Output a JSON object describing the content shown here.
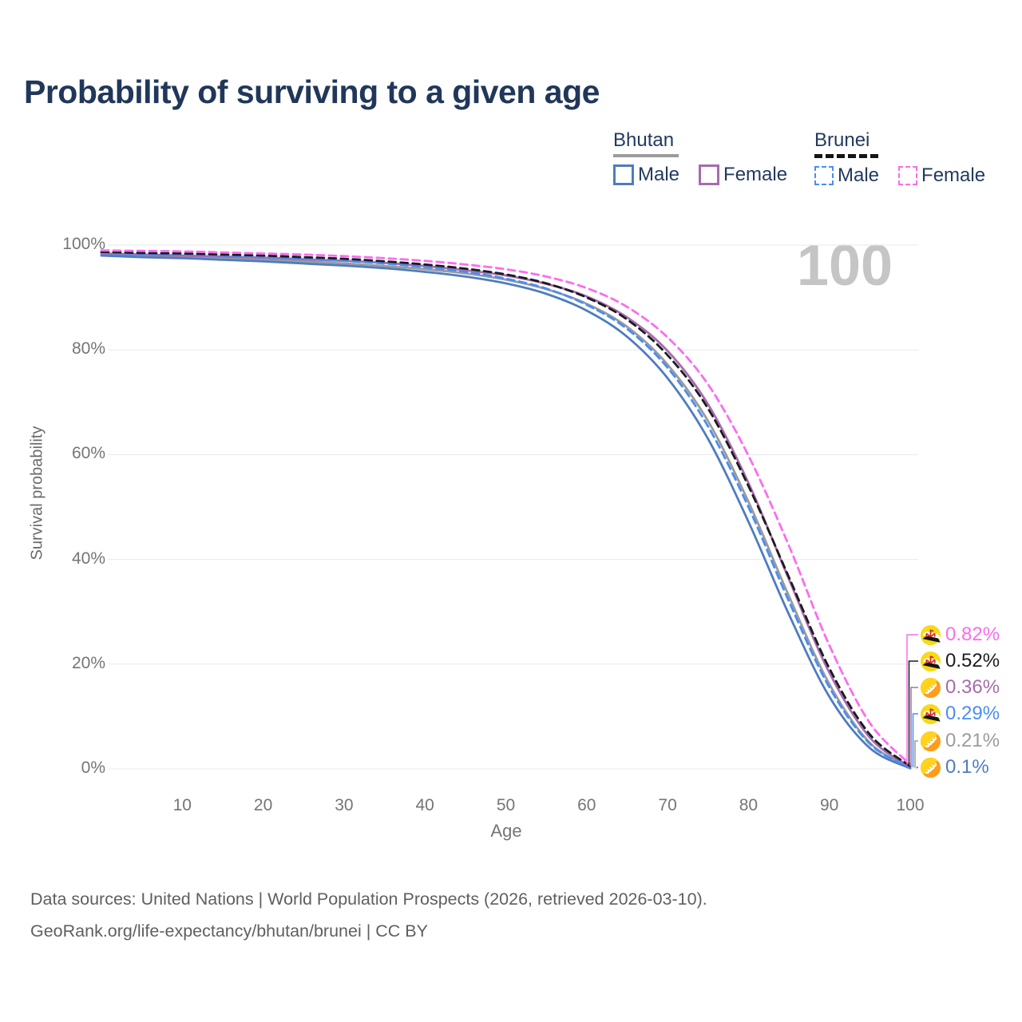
{
  "title": "Probability of surviving to a given age",
  "watermark_age": "100",
  "legend": {
    "groups": [
      {
        "country": "Bhutan",
        "line_style": "solid",
        "underline_color": "#9b9b9b",
        "items": [
          {
            "label": "Male",
            "color": "#4f7cc0"
          },
          {
            "label": "Female",
            "color": "#a66bae"
          }
        ]
      },
      {
        "country": "Brunei",
        "line_style": "dashed",
        "underline_color": "#141414",
        "items": [
          {
            "label": "Male",
            "color": "#4a8df5"
          },
          {
            "label": "Female",
            "color": "#fb6cf0"
          }
        ]
      }
    ]
  },
  "y_axis": {
    "title": "Survival probability",
    "ticks": [
      "0%",
      "20%",
      "40%",
      "60%",
      "80%",
      "100%"
    ]
  },
  "x_axis": {
    "title": "Age",
    "ticks": [
      "10",
      "20",
      "30",
      "40",
      "50",
      "60",
      "70",
      "80",
      "90",
      "100"
    ]
  },
  "chart_data": {
    "type": "line",
    "title": "Probability of surviving to a given age",
    "xlabel": "Age",
    "ylabel": "Survival probability",
    "xlim": [
      0,
      100
    ],
    "ylim": [
      0,
      100
    ],
    "grid": "horizontal-only",
    "legend_position": "top-right",
    "x": [
      0,
      5,
      10,
      15,
      20,
      25,
      30,
      35,
      40,
      45,
      50,
      55,
      60,
      65,
      70,
      75,
      80,
      85,
      90,
      95,
      100
    ],
    "series": [
      {
        "id": "bhutan-male",
        "name": "Bhutan Male",
        "country": "Bhutan",
        "sex": "male",
        "style": "solid",
        "color": "#4f7cc0",
        "values": [
          98.0,
          97.7,
          97.5,
          97.2,
          96.9,
          96.5,
          96.1,
          95.6,
          94.9,
          94.0,
          92.7,
          90.7,
          87.5,
          82.5,
          74.6,
          63.0,
          47.2,
          29.5,
          13.8,
          4.0,
          0.1
        ]
      },
      {
        "id": "bhutan-female",
        "name": "Bhutan Female",
        "country": "Bhutan",
        "sex": "female",
        "style": "solid",
        "color": "#a66bae",
        "values": [
          98.4,
          98.2,
          98.0,
          97.8,
          97.6,
          97.3,
          97.0,
          96.6,
          96.0,
          95.2,
          94.2,
          92.6,
          90.2,
          86.2,
          79.8,
          69.6,
          54.6,
          36.2,
          18.4,
          6.0,
          0.36
        ]
      },
      {
        "id": "bhutan-both",
        "name": "Bhutan (both sexes)",
        "country": "Bhutan",
        "sex": "both",
        "style": "solid",
        "color": "#9b9b9b",
        "values": [
          98.2,
          98.0,
          97.8,
          97.5,
          97.2,
          96.9,
          96.5,
          96.0,
          95.4,
          94.6,
          93.4,
          91.6,
          88.8,
          84.4,
          77.2,
          66.4,
          51.0,
          33.0,
          16.2,
          5.0,
          0.21
        ]
      },
      {
        "id": "brunei-male",
        "name": "Brunei Male",
        "country": "Brunei",
        "sex": "male",
        "style": "dashed",
        "color": "#4a8df5",
        "values": [
          98.5,
          98.3,
          98.2,
          98.0,
          97.7,
          97.4,
          97.0,
          96.5,
          95.8,
          94.9,
          93.6,
          91.7,
          88.6,
          84.0,
          76.6,
          65.4,
          50.0,
          32.0,
          15.6,
          4.8,
          0.29
        ]
      },
      {
        "id": "brunei-both",
        "name": "Brunei (both sexes)",
        "country": "Brunei",
        "sex": "both",
        "style": "dashed",
        "color": "#1c1c1c",
        "values": [
          98.7,
          98.5,
          98.4,
          98.2,
          98.0,
          97.7,
          97.4,
          96.9,
          96.3,
          95.5,
          94.4,
          92.7,
          90.0,
          85.8,
          79.0,
          68.8,
          54.0,
          36.6,
          19.2,
          6.6,
          0.52
        ]
      },
      {
        "id": "brunei-female",
        "name": "Brunei Female",
        "country": "Brunei",
        "sex": "female",
        "style": "dashed",
        "color": "#fb6cf0",
        "values": [
          99.0,
          98.9,
          98.8,
          98.6,
          98.4,
          98.2,
          97.9,
          97.5,
          97.0,
          96.3,
          95.4,
          94.0,
          91.8,
          88.2,
          82.4,
          73.4,
          59.8,
          42.6,
          23.6,
          8.8,
          0.82
        ]
      }
    ],
    "end_labels": [
      {
        "series_id": "brunei-female",
        "text": "0.82%",
        "flag": "brunei"
      },
      {
        "series_id": "brunei-both",
        "text": "0.52%",
        "flag": "brunei"
      },
      {
        "series_id": "bhutan-female",
        "text": "0.36%",
        "flag": "bhutan"
      },
      {
        "series_id": "brunei-male",
        "text": "0.29%",
        "flag": "brunei"
      },
      {
        "series_id": "bhutan-both",
        "text": "0.21%",
        "flag": "bhutan"
      },
      {
        "series_id": "bhutan-male",
        "text": "0.1%",
        "flag": "bhutan"
      }
    ]
  },
  "footer": {
    "line1": "Data sources: United Nations | World Population Prospects (2026, retrieved 2026-03-10).",
    "line2": "GeoRank.org/life-expectancy/bhutan/brunei | CC BY"
  }
}
